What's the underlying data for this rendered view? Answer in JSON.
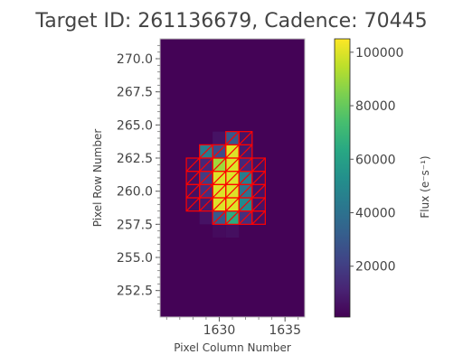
{
  "chart_data": {
    "type": "heatmap",
    "title": "Target ID: 261136679, Cadence: 70445",
    "xlabel": "Pixel Column Number",
    "ylabel": "Pixel Row Number",
    "xlim": [
      1625.5,
      1636.5
    ],
    "ylim": [
      250.5,
      271.5
    ],
    "x_ticks": [
      1630,
      1635
    ],
    "x_tick_labels": [
      "1630",
      "1635"
    ],
    "y_ticks": [
      252.5,
      255.0,
      257.5,
      260.0,
      262.5,
      265.0,
      267.5,
      270.0
    ],
    "y_tick_labels": [
      "252.5",
      "255.0",
      "257.5",
      "260.0",
      "262.5",
      "265.0",
      "267.5",
      "270.0"
    ],
    "background_flux": 1500,
    "pixels": [
      {
        "col": 1630,
        "row": 258,
        "flux": 30000
      },
      {
        "col": 1631,
        "row": 258,
        "flux": 65000
      },
      {
        "col": 1632,
        "row": 258,
        "flux": 15000
      },
      {
        "col": 1630,
        "row": 259,
        "flux": 100000
      },
      {
        "col": 1631,
        "row": 259,
        "flux": 100000
      },
      {
        "col": 1632,
        "row": 259,
        "flux": 50000
      },
      {
        "col": 1629,
        "row": 260,
        "flux": 15000
      },
      {
        "col": 1630,
        "row": 260,
        "flux": 100000
      },
      {
        "col": 1631,
        "row": 260,
        "flux": 100000
      },
      {
        "col": 1632,
        "row": 260,
        "flux": 40000
      },
      {
        "col": 1629,
        "row": 261,
        "flux": 20000
      },
      {
        "col": 1630,
        "row": 261,
        "flux": 100000
      },
      {
        "col": 1631,
        "row": 261,
        "flux": 100000
      },
      {
        "col": 1632,
        "row": 261,
        "flux": 45000
      },
      {
        "col": 1630,
        "row": 262,
        "flux": 90000
      },
      {
        "col": 1631,
        "row": 262,
        "flux": 100000
      },
      {
        "col": 1629,
        "row": 263,
        "flux": 45000
      },
      {
        "col": 1630,
        "row": 263,
        "flux": 25000
      },
      {
        "col": 1631,
        "row": 263,
        "flux": 100000
      },
      {
        "col": 1631,
        "row": 264,
        "flux": 30000
      },
      {
        "col": 1628,
        "row": 259,
        "flux": 5000
      },
      {
        "col": 1628,
        "row": 260,
        "flux": 5000
      },
      {
        "col": 1628,
        "row": 261,
        "flux": 5000
      },
      {
        "col": 1628,
        "row": 262,
        "flux": 5000
      },
      {
        "col": 1629,
        "row": 258,
        "flux": 6000
      },
      {
        "col": 1629,
        "row": 259,
        "flux": 8000
      },
      {
        "col": 1629,
        "row": 262,
        "flux": 12000
      },
      {
        "col": 1630,
        "row": 264,
        "flux": 6000
      },
      {
        "col": 1632,
        "row": 262,
        "flux": 12000
      },
      {
        "col": 1632,
        "row": 263,
        "flux": 8000
      },
      {
        "col": 1632,
        "row": 264,
        "flux": 6000
      },
      {
        "col": 1633,
        "row": 258,
        "flux": 5000
      },
      {
        "col": 1633,
        "row": 259,
        "flux": 6000
      },
      {
        "col": 1633,
        "row": 260,
        "flux": 6000
      },
      {
        "col": 1633,
        "row": 261,
        "flux": 5000
      },
      {
        "col": 1633,
        "row": 262,
        "flux": 5000
      },
      {
        "col": 1631,
        "row": 257,
        "flux": 5000
      },
      {
        "col": 1630,
        "row": 257,
        "flux": 4000
      }
    ],
    "aperture_mask": [
      [
        1631,
        264
      ],
      [
        1632,
        264
      ],
      [
        1629,
        263
      ],
      [
        1630,
        263
      ],
      [
        1631,
        263
      ],
      [
        1632,
        263
      ],
      [
        1628,
        262
      ],
      [
        1629,
        262
      ],
      [
        1630,
        262
      ],
      [
        1631,
        262
      ],
      [
        1632,
        262
      ],
      [
        1633,
        262
      ],
      [
        1628,
        261
      ],
      [
        1629,
        261
      ],
      [
        1630,
        261
      ],
      [
        1631,
        261
      ],
      [
        1632,
        261
      ],
      [
        1633,
        261
      ],
      [
        1628,
        260
      ],
      [
        1629,
        260
      ],
      [
        1630,
        260
      ],
      [
        1631,
        260
      ],
      [
        1632,
        260
      ],
      [
        1633,
        260
      ],
      [
        1628,
        259
      ],
      [
        1629,
        259
      ],
      [
        1630,
        259
      ],
      [
        1631,
        259
      ],
      [
        1632,
        259
      ],
      [
        1633,
        259
      ],
      [
        1630,
        258
      ],
      [
        1631,
        258
      ],
      [
        1632,
        258
      ],
      [
        1633,
        258
      ]
    ],
    "colorbar": {
      "label": "Flux (e⁻s⁻¹)",
      "range": [
        1000,
        105000
      ],
      "ticks": [
        20000,
        40000,
        60000,
        80000,
        100000
      ],
      "tick_labels": [
        "20000",
        "40000",
        "60000",
        "80000",
        "100000"
      ],
      "colormap": "viridis"
    },
    "aperture_color": "#ff0000",
    "grid": false
  }
}
